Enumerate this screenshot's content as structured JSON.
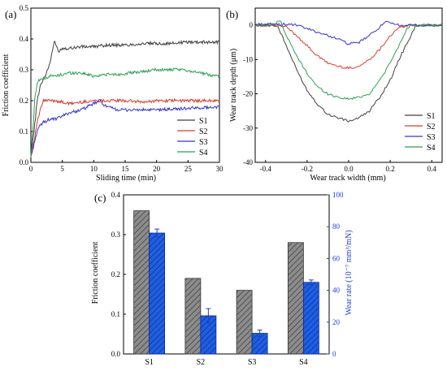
{
  "chart_data": [
    {
      "panel_label": "(a)",
      "type": "line",
      "xlabel": "Sliding time (min)",
      "ylabel": "Friction coefficient",
      "xlim": [
        0,
        30
      ],
      "ylim": [
        0,
        0.5
      ],
      "xticks": [
        "0",
        "5",
        "10",
        "15",
        "20",
        "25",
        "30"
      ],
      "yticks": [
        "0.0",
        "0.1",
        "0.2",
        "0.3",
        "0.4",
        "0.5"
      ],
      "legend_position": "right",
      "series": [
        {
          "name": "S1",
          "color": "#404040",
          "x": [
            0,
            0.3,
            0.6,
            1.0,
            1.5,
            2.0,
            2.5,
            3.0,
            3.3,
            3.6,
            3.8,
            4.0,
            4.2,
            4.5,
            5.0,
            6.0,
            8.0,
            10.0,
            12.0,
            15.0,
            18.0,
            20.0,
            22.0,
            25.0,
            28.0,
            30.0
          ],
          "y": [
            0.02,
            0.07,
            0.12,
            0.2,
            0.25,
            0.27,
            0.29,
            0.32,
            0.35,
            0.38,
            0.39,
            0.38,
            0.37,
            0.36,
            0.37,
            0.37,
            0.375,
            0.375,
            0.38,
            0.38,
            0.385,
            0.385,
            0.385,
            0.39,
            0.39,
            0.39
          ]
        },
        {
          "name": "S2",
          "color": "#d83c2c",
          "x": [
            0,
            0.3,
            0.6,
            1.0,
            1.5,
            2.0,
            3.0,
            4.0,
            6.0,
            8.0,
            10.0,
            12.0,
            15.0,
            18.0,
            20.0,
            25.0,
            30.0
          ],
          "y": [
            0.02,
            0.05,
            0.08,
            0.13,
            0.17,
            0.2,
            0.2,
            0.2,
            0.19,
            0.195,
            0.2,
            0.2,
            0.2,
            0.195,
            0.2,
            0.2,
            0.2
          ]
        },
        {
          "name": "S3",
          "color": "#3333cc",
          "x": [
            0,
            0.3,
            0.6,
            1.0,
            1.5,
            2.0,
            3.0,
            4.0,
            5.0,
            6.0,
            8.0,
            10.0,
            11.0,
            12.0,
            14.0,
            16.0,
            18.0,
            20.0,
            25.0,
            30.0
          ],
          "y": [
            0.02,
            0.04,
            0.07,
            0.1,
            0.12,
            0.13,
            0.14,
            0.14,
            0.15,
            0.16,
            0.17,
            0.19,
            0.2,
            0.18,
            0.17,
            0.17,
            0.17,
            0.17,
            0.175,
            0.18
          ]
        },
        {
          "name": "S4",
          "color": "#2e9e55",
          "x": [
            0,
            0.3,
            0.6,
            1.0,
            1.5,
            2.0,
            3.0,
            4.0,
            5.0,
            6.0,
            8.0,
            10.0,
            12.0,
            14.0,
            16.0,
            18.0,
            20.0,
            22.0,
            24.0,
            26.0,
            28.0,
            30.0
          ],
          "y": [
            0.02,
            0.1,
            0.2,
            0.26,
            0.27,
            0.27,
            0.28,
            0.28,
            0.285,
            0.29,
            0.29,
            0.28,
            0.285,
            0.285,
            0.29,
            0.295,
            0.3,
            0.3,
            0.3,
            0.295,
            0.285,
            0.28
          ]
        }
      ]
    },
    {
      "panel_label": "(b)",
      "type": "line",
      "xlabel": "Wear track width (mm)",
      "ylabel": "Wear track depth (μm)",
      "xlim": [
        -0.45,
        0.45
      ],
      "ylim": [
        -40,
        5
      ],
      "xticks": [
        "-0.4",
        "-0.2",
        "0.0",
        "0.2",
        "0.4"
      ],
      "yticks": [
        "0",
        "-10",
        "-20",
        "-30",
        "-40"
      ],
      "legend_position": "bottom-right",
      "series": [
        {
          "name": "S1",
          "color": "#404040",
          "x": [
            -0.45,
            -0.4,
            -0.36,
            -0.34,
            -0.3,
            -0.25,
            -0.2,
            -0.15,
            -0.1,
            -0.05,
            0.0,
            0.05,
            0.1,
            0.15,
            0.2,
            0.25,
            0.3,
            0.32,
            0.35,
            0.4,
            0.45
          ],
          "y": [
            0,
            0,
            0,
            -0.5,
            -6,
            -13,
            -19,
            -23,
            -26,
            -27,
            -28,
            -27,
            -25,
            -21,
            -16,
            -9,
            -3,
            -0.5,
            0,
            0,
            0
          ]
        },
        {
          "name": "S2",
          "color": "#d83c2c",
          "x": [
            -0.45,
            -0.4,
            -0.35,
            -0.3,
            -0.25,
            -0.2,
            -0.15,
            -0.1,
            -0.05,
            0.0,
            0.05,
            0.1,
            0.15,
            0.2,
            0.25,
            0.3,
            0.35,
            0.4,
            0.45
          ],
          "y": [
            0,
            0,
            0,
            -0.5,
            -3,
            -6,
            -9,
            -11,
            -12,
            -12.5,
            -12,
            -10,
            -7,
            -3,
            -0.5,
            0,
            0,
            0,
            0
          ]
        },
        {
          "name": "S3",
          "color": "#3333cc",
          "x": [
            -0.45,
            -0.4,
            -0.3,
            -0.25,
            -0.2,
            -0.15,
            -0.1,
            -0.05,
            0.0,
            0.05,
            0.1,
            0.15,
            0.18,
            0.2,
            0.25,
            0.3,
            0.4,
            0.45
          ],
          "y": [
            0.3,
            0.3,
            0.3,
            0,
            -1,
            -2,
            -3,
            -4,
            -5.5,
            -5,
            -3,
            -0.5,
            1,
            0.5,
            0,
            0,
            0,
            0
          ]
        },
        {
          "name": "S4",
          "color": "#2e9e55",
          "x": [
            -0.45,
            -0.4,
            -0.35,
            -0.33,
            -0.3,
            -0.25,
            -0.2,
            -0.15,
            -0.1,
            -0.05,
            0.0,
            0.05,
            0.1,
            0.15,
            0.2,
            0.25,
            0.28,
            0.3,
            0.35,
            0.4,
            0.45
          ],
          "y": [
            0,
            0,
            0.5,
            1.5,
            -3,
            -9,
            -14,
            -18,
            -20,
            -21,
            -21.5,
            -21,
            -20,
            -16,
            -11,
            -5,
            -1,
            0,
            0,
            0,
            0
          ]
        }
      ]
    },
    {
      "panel_label": "(c)",
      "type": "bar",
      "categories": [
        "S1",
        "S2",
        "S3",
        "S4"
      ],
      "ylabel": "Friction coefficient",
      "ylabel2": "Wear rate (10⁻⁷ mm³/mN)",
      "ylim": [
        0,
        0.4
      ],
      "ylim2": [
        0,
        100
      ],
      "yticks": [
        "0.0",
        "0.1",
        "0.2",
        "0.3",
        "0.4"
      ],
      "yticks2": [
        "0",
        "20",
        "40",
        "60",
        "80",
        "100"
      ],
      "series": [
        {
          "axis": "left",
          "color": "#8c8c8c",
          "values": [
            0.36,
            0.19,
            0.16,
            0.28
          ]
        },
        {
          "axis": "right",
          "color": "#1f5fe0",
          "values": [
            76,
            24,
            13,
            45
          ],
          "errors": [
            2.5,
            4.5,
            2.0,
            1.5
          ]
        }
      ]
    }
  ]
}
